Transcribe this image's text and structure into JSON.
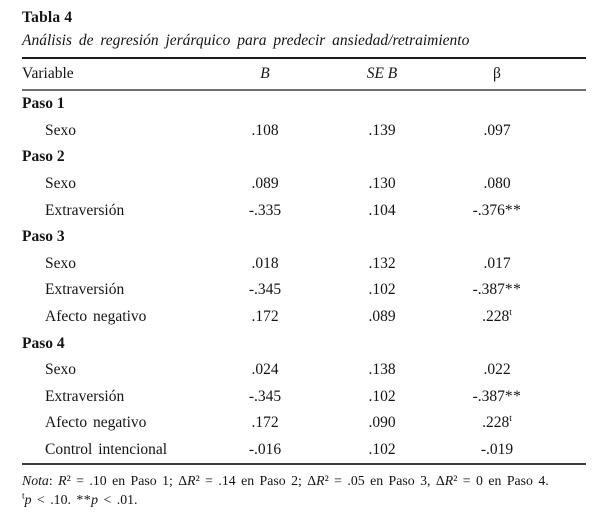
{
  "table": {
    "title": "Tabla 4",
    "subtitle": "Análisis de regresión jerárquico para predecir ansiedad/retraimiento",
    "columns": {
      "variable": "Variable",
      "b": "B",
      "seb": "SE B",
      "beta": "β"
    },
    "rows": [
      {
        "type": "step",
        "label": "Paso 1"
      },
      {
        "type": "var",
        "label": "Sexo",
        "b": ".108",
        "seb": ".139",
        "beta": ".097"
      },
      {
        "type": "step",
        "label": "Paso 2"
      },
      {
        "type": "var",
        "label": "Sexo",
        "b": ".089",
        "seb": ".130",
        "beta": ".080"
      },
      {
        "type": "var",
        "label": "Extraversión",
        "b": "-.335",
        "seb": ".104",
        "beta": "-.376",
        "stars": "**"
      },
      {
        "type": "step",
        "label": "Paso 3"
      },
      {
        "type": "var",
        "label": "Sexo",
        "b": ".018",
        "seb": ".132",
        "beta": ".017"
      },
      {
        "type": "var",
        "label": "Extraversión",
        "b": "-.345",
        "seb": ".102",
        "beta": "-.387",
        "stars": "**"
      },
      {
        "type": "var",
        "label": "Afecto negativo",
        "b": ".172",
        "seb": ".089",
        "beta": ".228",
        "sup": "t"
      },
      {
        "type": "step",
        "label": "Paso 4"
      },
      {
        "type": "var",
        "label": "Sexo",
        "b": ".024",
        "seb": ".138",
        "beta": ".022"
      },
      {
        "type": "var",
        "label": "Extraversión",
        "b": "-.345",
        "seb": ".102",
        "beta": "-.387",
        "stars": "**"
      },
      {
        "type": "var",
        "label": "Afecto negativo",
        "b": ".172",
        "seb": ".090",
        "beta": ".228",
        "sup": "t"
      },
      {
        "type": "var",
        "label": "Control intencional",
        "b": "-.016",
        "seb": ".102",
        "beta": "-.019"
      }
    ]
  },
  "note": {
    "label": "Nota",
    "colon": ": ",
    "r": "R",
    "s1": "² = .10 en Paso 1; Δ",
    "s2": "² = .14 en Paso 2; Δ",
    "s3": "² = .05 en Paso 3, Δ",
    "s4": "² = 0 en Paso 4.",
    "line2": {
      "sup": "t",
      "p": "p",
      "mid": " < .10. ",
      "stars": "**",
      "p2": "p",
      "end": " < .01."
    }
  }
}
